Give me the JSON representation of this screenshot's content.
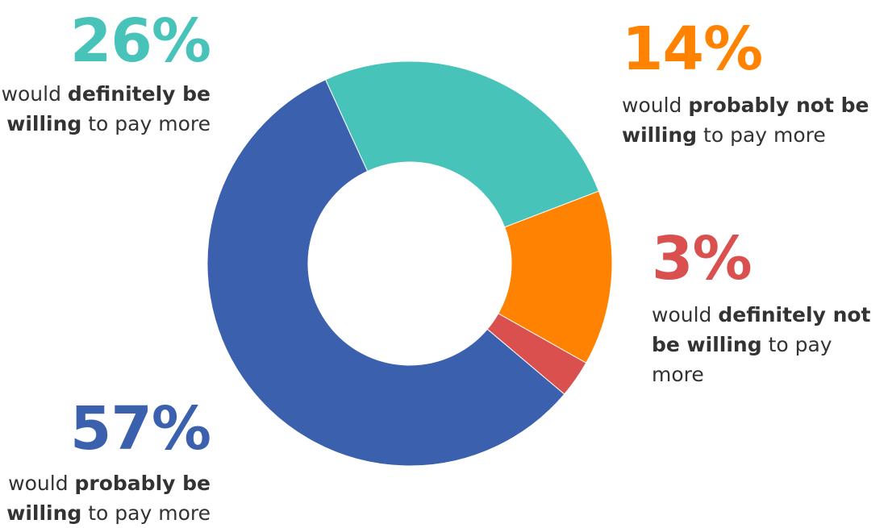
{
  "chart_data": {
    "type": "pie",
    "donut": true,
    "slices": [
      {
        "value": 26,
        "label": "26%",
        "desc_pre": "would ",
        "desc_bold": "definitely be willing",
        "desc_post": " to pay more",
        "color": "#47C3BA"
      },
      {
        "value": 14,
        "label": "14%",
        "desc_pre": "would ",
        "desc_bold": "probably not be willing",
        "desc_post": " to pay more",
        "color": "#FF8300"
      },
      {
        "value": 3,
        "label": "3%",
        "desc_pre": "would ",
        "desc_bold": "definitely not be willing",
        "desc_post": " to pay more",
        "color": "#D9504F"
      },
      {
        "value": 57,
        "label": "57%",
        "desc_pre": "would ",
        "desc_bold": "probably be willing",
        "desc_post": " to pay more",
        "color": "#3B61AE"
      }
    ]
  }
}
